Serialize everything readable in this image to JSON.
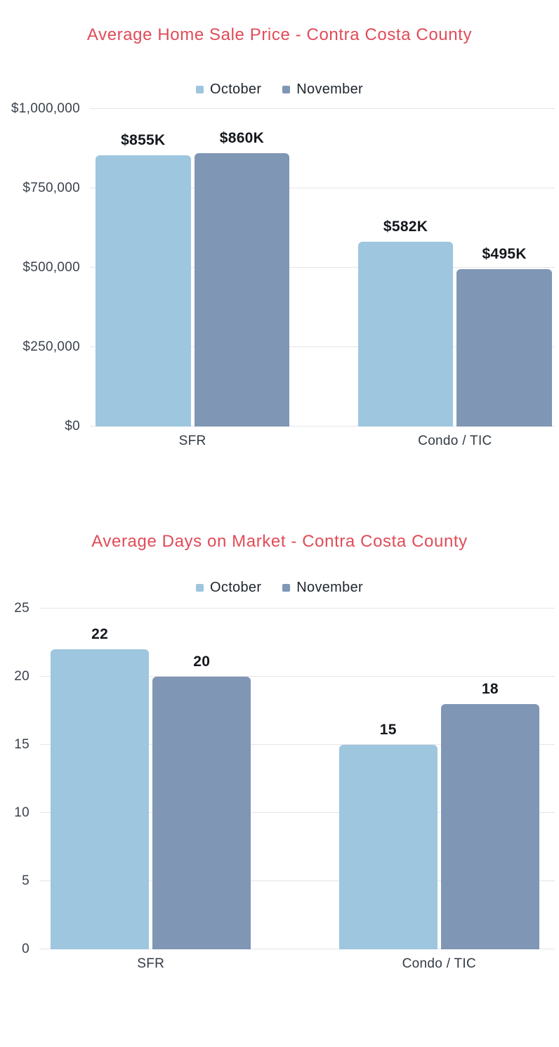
{
  "page": {
    "background": "#ffffff",
    "title_color": "#e14b58",
    "series_colors": {
      "october": "#9ec6de",
      "november": "#8096b5"
    }
  },
  "chart_data": [
    {
      "type": "bar",
      "title": "Average Home Sale Price - Contra Costa County",
      "title_color": "#e14b58",
      "categories": [
        "SFR",
        "Condo / TIC"
      ],
      "series": [
        {
          "name": "October",
          "color": "#9ec6de",
          "values": [
            855000,
            582000
          ],
          "value_labels": [
            "$855K",
            "$582K"
          ]
        },
        {
          "name": "November",
          "color": "#8096b5",
          "values": [
            860000,
            495000
          ],
          "value_labels": [
            "$860K",
            "$495K"
          ]
        }
      ],
      "y_max": 1000000,
      "ylim": [
        0,
        1000000
      ],
      "y_ticks": [
        {
          "value": 0,
          "label": "$0"
        },
        {
          "value": 250000,
          "label": "$250,000"
        },
        {
          "value": 500000,
          "label": "$500,000"
        },
        {
          "value": 750000,
          "label": "$750,000"
        },
        {
          "value": 1000000,
          "label": "$1,000,000"
        }
      ],
      "legend_position": "top",
      "grid": true
    },
    {
      "type": "bar",
      "title": "Average Days on Market - Contra Costa County",
      "title_color": "#e14b58",
      "categories": [
        "SFR",
        "Condo / TIC"
      ],
      "series": [
        {
          "name": "October",
          "color": "#9ec6de",
          "values": [
            22,
            15
          ],
          "value_labels": [
            "22",
            "15"
          ]
        },
        {
          "name": "November",
          "color": "#8096b5",
          "values": [
            20,
            18
          ],
          "value_labels": [
            "20",
            "18"
          ]
        }
      ],
      "y_max": 25,
      "ylim": [
        0,
        25
      ],
      "y_ticks": [
        {
          "value": 0,
          "label": "0"
        },
        {
          "value": 5,
          "label": "5"
        },
        {
          "value": 10,
          "label": "10"
        },
        {
          "value": 15,
          "label": "15"
        },
        {
          "value": 20,
          "label": "20"
        },
        {
          "value": 25,
          "label": "25"
        }
      ],
      "legend_position": "top",
      "grid": true
    }
  ]
}
